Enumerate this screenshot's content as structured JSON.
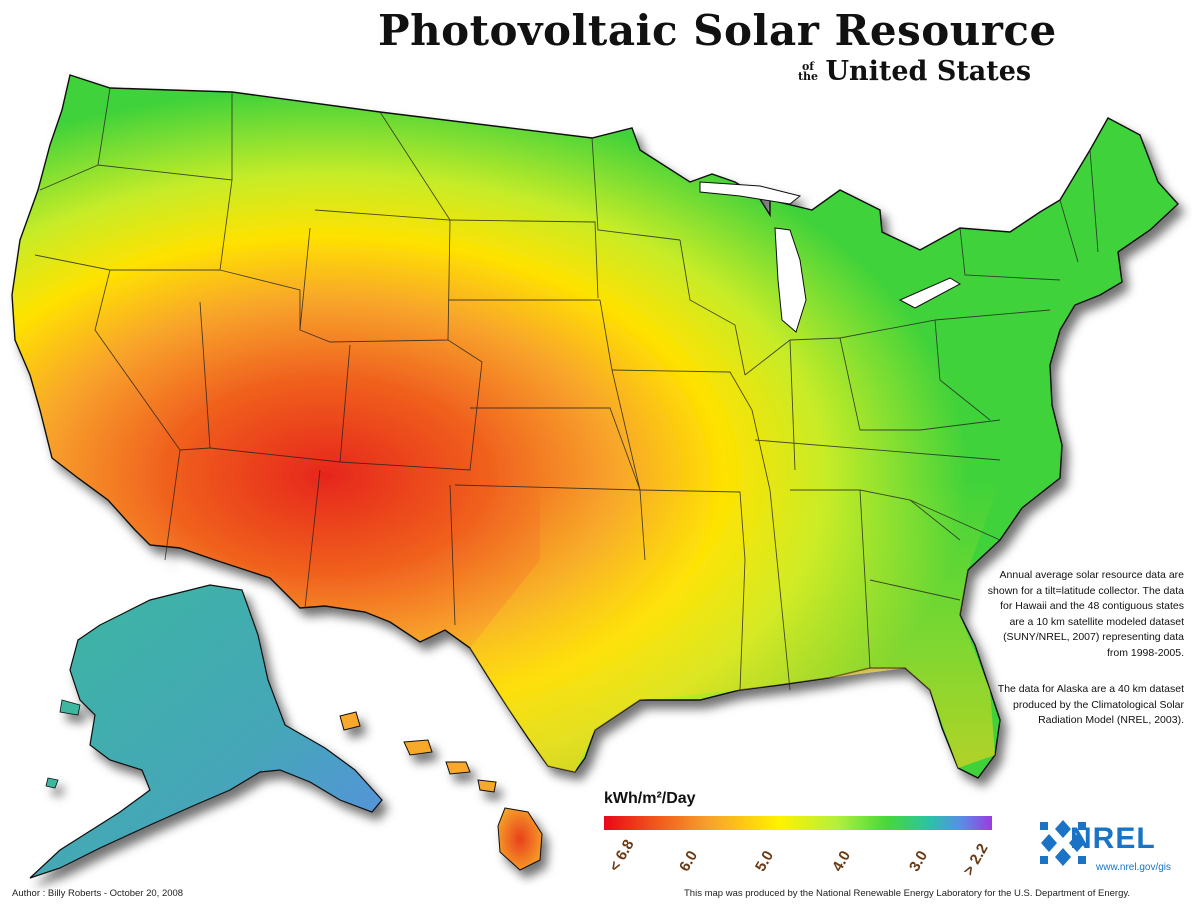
{
  "title": "Photovoltaic Solar Resource",
  "subtitle_small_line1": "of",
  "subtitle_small_line2": "the",
  "subtitle_main": "United States",
  "notes": {
    "paragraph1": "Annual average solar resource data are shown for a tilt=latitude collector. The data for Hawaii and the 48 contiguous states are a 10 km satellite modeled dataset (SUNY/NREL, 2007) representing data from 1998-2005.",
    "paragraph2": "The data for Alaska are a 40 km dataset produced by the Climatological Solar Radiation Model (NREL, 2003)."
  },
  "legend": {
    "title": "kWh/m²/Day",
    "labels": [
      "< 6.8",
      "6.0",
      "5.0",
      "4.0",
      "3.0",
      "> 2.2"
    ],
    "colors": [
      "#e8081a",
      "#f8a12a",
      "#fff200",
      "#46d83a",
      "#5a8de6",
      "#9b3be0"
    ]
  },
  "logo": {
    "name": "NREL",
    "url": "www.nrel.gov/gis",
    "color": "#1a73c4"
  },
  "footer": {
    "author": "Author : Billy Roberts - October 20, 2008",
    "credit": "This map was produced by the National Renewable Energy Laboratory for the U.S. Department of Energy."
  }
}
